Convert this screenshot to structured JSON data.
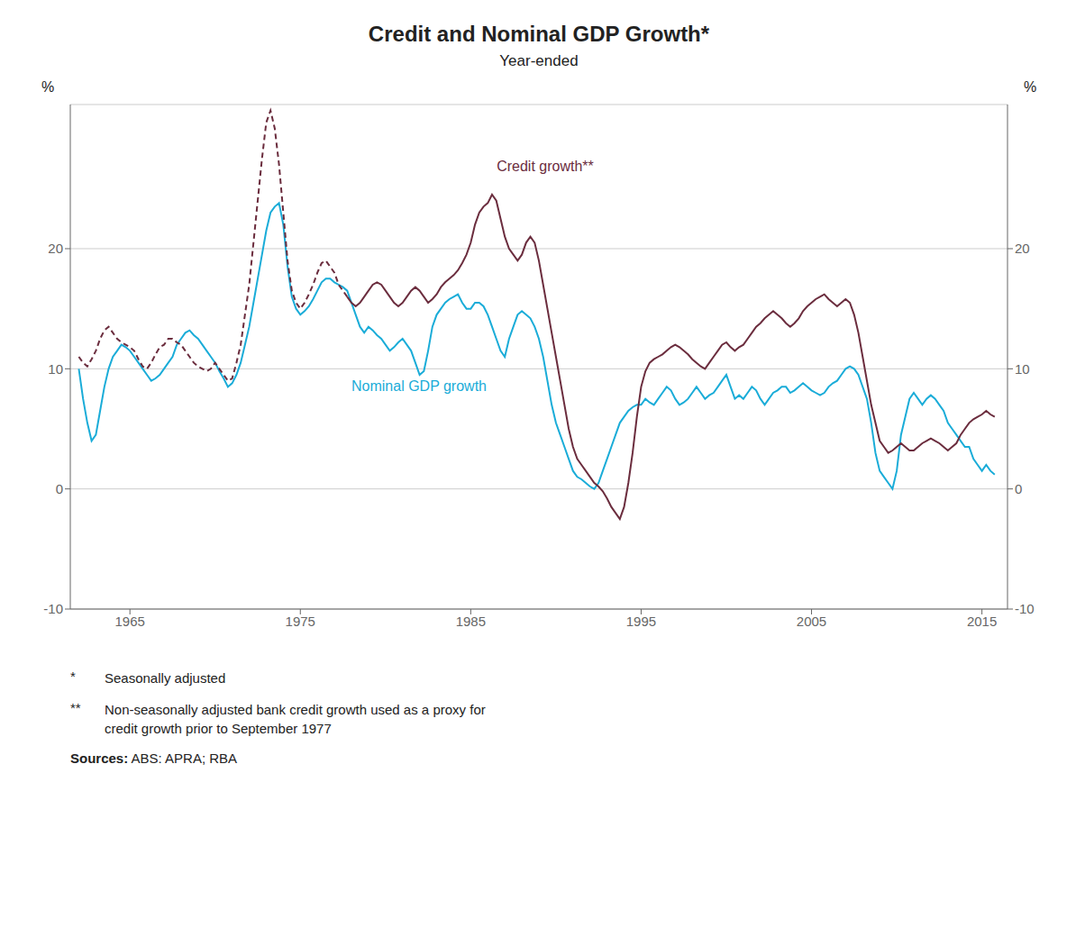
{
  "chart_data": {
    "type": "line",
    "title": "Credit and Nominal GDP Growth*",
    "subtitle": "Year-ended",
    "ylabel": "%",
    "y2label": "%",
    "xlim": [
      1961.5,
      2016.5
    ],
    "xticks": [
      1965,
      1975,
      1985,
      1995,
      2005,
      2015
    ],
    "ylim": [
      -10,
      32
    ],
    "yticks": [
      -10,
      0,
      10,
      20
    ],
    "y2lim": [
      -10,
      32
    ],
    "y2ticks": [
      -10,
      0,
      10,
      20
    ],
    "grid": true,
    "footnotes": [
      {
        "marker": "*",
        "text": "Seasonally adjusted"
      },
      {
        "marker": "**",
        "text": "Non-seasonally adjusted bank credit growth used as a proxy for\ncredit growth prior to September 1977"
      }
    ],
    "source_label": "Sources:",
    "source_text": " ABS: APRA; RBA",
    "x": [
      1962.0,
      1962.25,
      1962.5,
      1962.75,
      1963.0,
      1963.25,
      1963.5,
      1963.75,
      1964.0,
      1964.25,
      1964.5,
      1964.75,
      1965.0,
      1965.25,
      1965.5,
      1965.75,
      1966.0,
      1966.25,
      1966.5,
      1966.75,
      1967.0,
      1967.25,
      1967.5,
      1967.75,
      1968.0,
      1968.25,
      1968.5,
      1968.75,
      1969.0,
      1969.25,
      1969.5,
      1969.75,
      1970.0,
      1970.25,
      1970.5,
      1970.75,
      1971.0,
      1971.25,
      1971.5,
      1971.75,
      1972.0,
      1972.25,
      1972.5,
      1972.75,
      1973.0,
      1973.25,
      1973.5,
      1973.75,
      1974.0,
      1974.25,
      1974.5,
      1974.75,
      1975.0,
      1975.25,
      1975.5,
      1975.75,
      1976.0,
      1976.25,
      1976.5,
      1976.75,
      1977.0,
      1977.25,
      1977.5,
      1977.75,
      1978.0,
      1978.25,
      1978.5,
      1978.75,
      1979.0,
      1979.25,
      1979.5,
      1979.75,
      1980.0,
      1980.25,
      1980.5,
      1980.75,
      1981.0,
      1981.25,
      1981.5,
      1981.75,
      1982.0,
      1982.25,
      1982.5,
      1982.75,
      1983.0,
      1983.25,
      1983.5,
      1983.75,
      1984.0,
      1984.25,
      1984.5,
      1984.75,
      1985.0,
      1985.25,
      1985.5,
      1985.75,
      1986.0,
      1986.25,
      1986.5,
      1986.75,
      1987.0,
      1987.25,
      1987.5,
      1987.75,
      1988.0,
      1988.25,
      1988.5,
      1988.75,
      1989.0,
      1989.25,
      1989.5,
      1989.75,
      1990.0,
      1990.25,
      1990.5,
      1990.75,
      1991.0,
      1991.25,
      1991.5,
      1991.75,
      1992.0,
      1992.25,
      1992.5,
      1992.75,
      1993.0,
      1993.25,
      1993.5,
      1993.75,
      1994.0,
      1994.25,
      1994.5,
      1994.75,
      1995.0,
      1995.25,
      1995.5,
      1995.75,
      1996.0,
      1996.25,
      1996.5,
      1996.75,
      1997.0,
      1997.25,
      1997.5,
      1997.75,
      1998.0,
      1998.25,
      1998.5,
      1998.75,
      1999.0,
      1999.25,
      1999.5,
      1999.75,
      2000.0,
      2000.25,
      2000.5,
      2000.75,
      2001.0,
      2001.25,
      2001.5,
      2001.75,
      2002.0,
      2002.25,
      2002.5,
      2002.75,
      2003.0,
      2003.25,
      2003.5,
      2003.75,
      2004.0,
      2004.25,
      2004.5,
      2004.75,
      2005.0,
      2005.25,
      2005.5,
      2005.75,
      2006.0,
      2006.25,
      2006.5,
      2006.75,
      2007.0,
      2007.25,
      2007.5,
      2007.75,
      2008.0,
      2008.25,
      2008.5,
      2008.75,
      2009.0,
      2009.25,
      2009.5,
      2009.75,
      2010.0,
      2010.25,
      2010.5,
      2010.75,
      2011.0,
      2011.25,
      2011.5,
      2011.75,
      2012.0,
      2012.25,
      2012.5,
      2012.75,
      2013.0,
      2013.25,
      2013.5,
      2013.75,
      2014.0,
      2014.25,
      2014.5,
      2014.75,
      2015.0,
      2015.25,
      2015.5,
      2015.75
    ],
    "series": [
      {
        "name": "Nominal GDP growth",
        "color": "#1AACD8",
        "line_style": "solid",
        "values": [
          10.0,
          7.5,
          5.5,
          4.0,
          4.5,
          6.5,
          8.5,
          10.0,
          11.0,
          11.5,
          12.0,
          11.8,
          11.5,
          11.0,
          10.5,
          10.0,
          9.5,
          9.0,
          9.2,
          9.5,
          10.0,
          10.5,
          11.0,
          12.0,
          12.5,
          13.0,
          13.2,
          12.8,
          12.5,
          12.0,
          11.5,
          11.0,
          10.5,
          9.8,
          9.2,
          8.5,
          8.8,
          9.5,
          10.5,
          12.0,
          13.5,
          15.5,
          17.5,
          19.5,
          21.5,
          23.0,
          23.5,
          23.8,
          22.0,
          18.5,
          16.0,
          15.0,
          14.5,
          14.8,
          15.2,
          15.8,
          16.5,
          17.2,
          17.5,
          17.5,
          17.2,
          17.0,
          16.8,
          16.5,
          15.5,
          14.5,
          13.5,
          13.0,
          13.5,
          13.2,
          12.8,
          12.5,
          12.0,
          11.5,
          11.8,
          12.2,
          12.5,
          12.0,
          11.5,
          10.5,
          9.5,
          9.8,
          11.5,
          13.5,
          14.5,
          15.0,
          15.5,
          15.8,
          16.0,
          16.2,
          15.5,
          15.0,
          15.0,
          15.5,
          15.5,
          15.2,
          14.5,
          13.5,
          12.5,
          11.5,
          11.0,
          12.5,
          13.5,
          14.5,
          14.8,
          14.5,
          14.2,
          13.5,
          12.5,
          11.0,
          9.0,
          7.0,
          5.5,
          4.5,
          3.5,
          2.5,
          1.5,
          1.0,
          0.8,
          0.5,
          0.2,
          0.0,
          0.5,
          1.5,
          2.5,
          3.5,
          4.5,
          5.5,
          6.0,
          6.5,
          6.8,
          7.0,
          7.0,
          7.5,
          7.2,
          7.0,
          7.5,
          8.0,
          8.5,
          8.2,
          7.5,
          7.0,
          7.2,
          7.5,
          8.0,
          8.5,
          8.0,
          7.5,
          7.8,
          8.0,
          8.5,
          9.0,
          9.5,
          8.5,
          7.5,
          7.8,
          7.5,
          8.0,
          8.5,
          8.2,
          7.5,
          7.0,
          7.5,
          8.0,
          8.2,
          8.5,
          8.5,
          8.0,
          8.2,
          8.5,
          8.8,
          8.5,
          8.2,
          8.0,
          7.8,
          8.0,
          8.5,
          8.8,
          9.0,
          9.5,
          10.0,
          10.2,
          10.0,
          9.5,
          8.5,
          7.5,
          5.5,
          3.0,
          1.5,
          1.0,
          0.5,
          0.0,
          1.5,
          4.5,
          6.0,
          7.5,
          8.0,
          7.5,
          7.0,
          7.5,
          7.8,
          7.5,
          7.0,
          6.5,
          5.5,
          5.0,
          4.5,
          4.0,
          3.5,
          3.5,
          2.5,
          2.0,
          1.5,
          2.0,
          1.5,
          1.2
        ]
      },
      {
        "name": "Credit growth**",
        "color": "#6B2D3E",
        "line_style": "dashed",
        "values": [
          11.0,
          10.5,
          10.2,
          10.8,
          11.5,
          12.5,
          13.2,
          13.5,
          13.0,
          12.5,
          12.2,
          12.0,
          11.8,
          11.5,
          10.8,
          10.2,
          10.0,
          10.5,
          11.2,
          11.8,
          12.0,
          12.5,
          12.5,
          12.2,
          12.0,
          11.5,
          11.0,
          10.5,
          10.2,
          10.0,
          9.8,
          10.0,
          10.5,
          10.0,
          9.5,
          9.0,
          9.2,
          10.5,
          12.0,
          14.5,
          17.0,
          20.5,
          24.0,
          27.5,
          30.5,
          31.5,
          30.0,
          27.0,
          23.0,
          19.0,
          16.5,
          15.5,
          15.0,
          15.5,
          16.2,
          17.0,
          18.0,
          18.8,
          19.0,
          18.5,
          18.0,
          17.0,
          16.5,
          16.0,
          null,
          null,
          null,
          null,
          null,
          null,
          null,
          null,
          null,
          null,
          null,
          null,
          null,
          null,
          null,
          null,
          null,
          null,
          null,
          null,
          null,
          null,
          null,
          null,
          null,
          null,
          null,
          null,
          null,
          null,
          null,
          null,
          null,
          null,
          null,
          null,
          null,
          null,
          null,
          null,
          null,
          null,
          null,
          null,
          null,
          null,
          null,
          null,
          null,
          null,
          null,
          null,
          null,
          null,
          null,
          null,
          null,
          null,
          null,
          null,
          null,
          null,
          null,
          null,
          null,
          null,
          null,
          null,
          null,
          null,
          null,
          null,
          null,
          null,
          null,
          null,
          null,
          null,
          null,
          null,
          null,
          null,
          null,
          null,
          null,
          null,
          null,
          null,
          null,
          null,
          null,
          null,
          null,
          null,
          null,
          null,
          null,
          null,
          null,
          null,
          null,
          null,
          null,
          null,
          null,
          null,
          null,
          null,
          null,
          null,
          null,
          null,
          null,
          null,
          null,
          null,
          null,
          null,
          null,
          null,
          null,
          null,
          null,
          null,
          null,
          null,
          null,
          null,
          null,
          null,
          null,
          null,
          null,
          null,
          null,
          null,
          null,
          null,
          null,
          null,
          null,
          null,
          null,
          null,
          null,
          null,
          null,
          null,
          null,
          null,
          null,
          null
        ]
      },
      {
        "name": "Credit growth**",
        "color": "#6B2D3E",
        "line_style": "solid",
        "values": [
          null,
          null,
          null,
          null,
          null,
          null,
          null,
          null,
          null,
          null,
          null,
          null,
          null,
          null,
          null,
          null,
          null,
          null,
          null,
          null,
          null,
          null,
          null,
          null,
          null,
          null,
          null,
          null,
          null,
          null,
          null,
          null,
          null,
          null,
          null,
          null,
          null,
          null,
          null,
          null,
          null,
          null,
          null,
          null,
          null,
          null,
          null,
          null,
          null,
          null,
          null,
          null,
          null,
          null,
          null,
          null,
          null,
          null,
          null,
          null,
          null,
          null,
          null,
          16.0,
          15.5,
          15.2,
          15.5,
          16.0,
          16.5,
          17.0,
          17.2,
          17.0,
          16.5,
          16.0,
          15.5,
          15.2,
          15.5,
          16.0,
          16.5,
          16.8,
          16.5,
          16.0,
          15.5,
          15.8,
          16.2,
          16.8,
          17.2,
          17.5,
          17.8,
          18.2,
          18.8,
          19.5,
          20.5,
          22.0,
          23.0,
          23.5,
          23.8,
          24.5,
          24.0,
          22.5,
          21.0,
          20.0,
          19.5,
          19.0,
          19.5,
          20.5,
          21.0,
          20.5,
          19.0,
          17.0,
          15.0,
          13.0,
          11.0,
          9.0,
          7.0,
          5.0,
          3.5,
          2.5,
          2.0,
          1.5,
          1.0,
          0.5,
          0.2,
          -0.2,
          -0.8,
          -1.5,
          -2.0,
          -2.5,
          -1.5,
          0.5,
          3.0,
          6.0,
          8.5,
          9.8,
          10.5,
          10.8,
          11.0,
          11.2,
          11.5,
          11.8,
          12.0,
          11.8,
          11.5,
          11.2,
          10.8,
          10.5,
          10.2,
          10.0,
          10.5,
          11.0,
          11.5,
          12.0,
          12.2,
          11.8,
          11.5,
          11.8,
          12.0,
          12.5,
          13.0,
          13.5,
          13.8,
          14.2,
          14.5,
          14.8,
          14.5,
          14.2,
          13.8,
          13.5,
          13.8,
          14.2,
          14.8,
          15.2,
          15.5,
          15.8,
          16.0,
          16.2,
          15.8,
          15.5,
          15.2,
          15.5,
          15.8,
          15.5,
          14.5,
          13.0,
          11.0,
          9.0,
          7.0,
          5.5,
          4.0,
          3.5,
          3.0,
          3.2,
          3.5,
          3.8,
          3.5,
          3.2,
          3.2,
          3.5,
          3.8,
          4.0,
          4.2,
          4.0,
          3.8,
          3.5,
          3.2,
          3.5,
          3.8,
          4.5,
          5.0,
          5.5,
          5.8,
          6.0,
          6.2,
          6.5,
          6.2,
          6.0
        ]
      }
    ]
  }
}
